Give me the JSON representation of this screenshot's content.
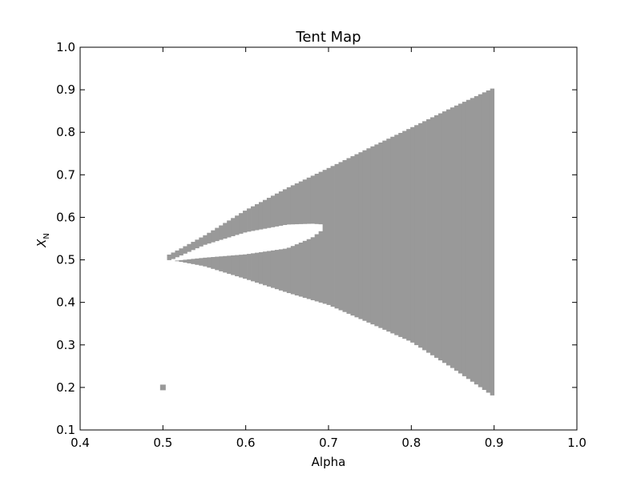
{
  "chart_data": {
    "type": "scatter",
    "title": "Tent Map",
    "xlabel": "Alpha",
    "ylabel_main": "X",
    "ylabel_sub": "N",
    "xlim": [
      0.4,
      1.0
    ],
    "ylim": [
      0.1,
      1.0
    ],
    "xticks": [
      "0.4",
      "0.5",
      "0.6",
      "0.7",
      "0.8",
      "0.9",
      "1.0"
    ],
    "yticks": [
      "0.1",
      "0.2",
      "0.3",
      "0.4",
      "0.5",
      "0.6",
      "0.7",
      "0.8",
      "0.9",
      "1.0"
    ],
    "grid": false,
    "point_color": "#999999",
    "isolated_points": [
      {
        "alpha": 0.5,
        "x": 0.2
      }
    ],
    "envelope": {
      "alpha": [
        0.505,
        0.52,
        0.55,
        0.6,
        0.65,
        0.7,
        0.75,
        0.8,
        0.85,
        0.9
      ],
      "upper": [
        0.51,
        0.525,
        0.557,
        0.617,
        0.669,
        0.716,
        0.764,
        0.811,
        0.859,
        0.905
      ],
      "lower": [
        0.5,
        0.496,
        0.485,
        0.455,
        0.423,
        0.394,
        0.351,
        0.307,
        0.245,
        0.178
      ]
    },
    "gap": {
      "alpha": [
        0.51,
        0.55,
        0.6,
        0.65,
        0.68,
        0.695
      ],
      "upper": [
        0.5,
        0.535,
        0.565,
        0.583,
        0.585,
        0.583
      ],
      "lower": [
        0.497,
        0.505,
        0.513,
        0.527,
        0.552,
        0.574
      ]
    }
  }
}
